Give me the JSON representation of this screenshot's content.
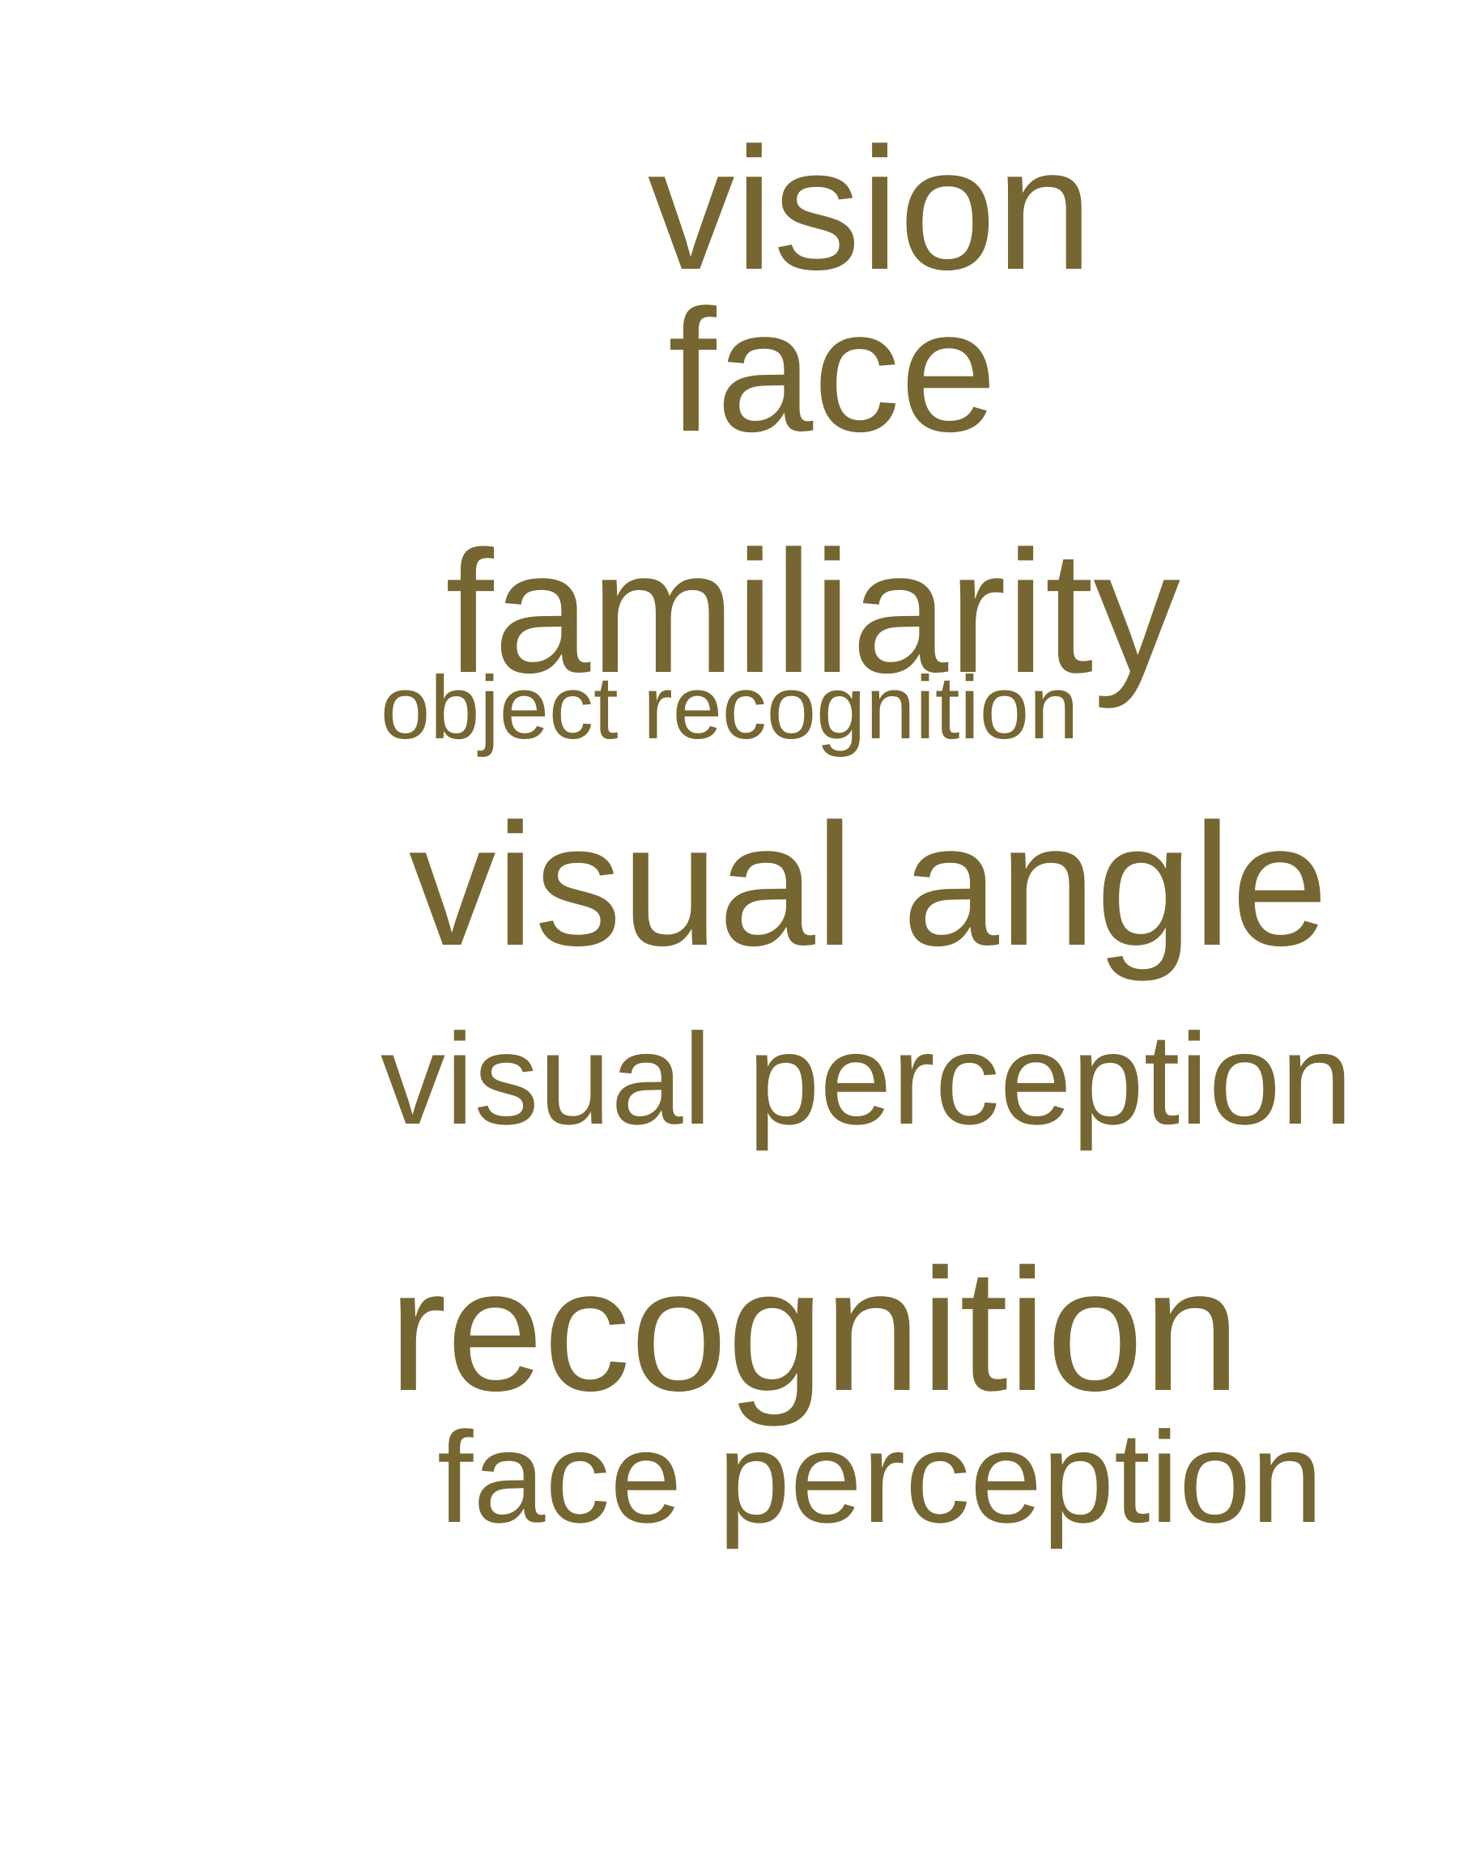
{
  "colors": {
    "text": "#766631",
    "background": "#ffffff"
  },
  "words": {
    "vision": "vision",
    "face": "face",
    "familiarity": "familiarity",
    "object_recognition": "object recognition",
    "visual_angle": "visual angle",
    "visual_perception": "visual perception",
    "recognition": "recognition",
    "face_perception": "face perception"
  }
}
